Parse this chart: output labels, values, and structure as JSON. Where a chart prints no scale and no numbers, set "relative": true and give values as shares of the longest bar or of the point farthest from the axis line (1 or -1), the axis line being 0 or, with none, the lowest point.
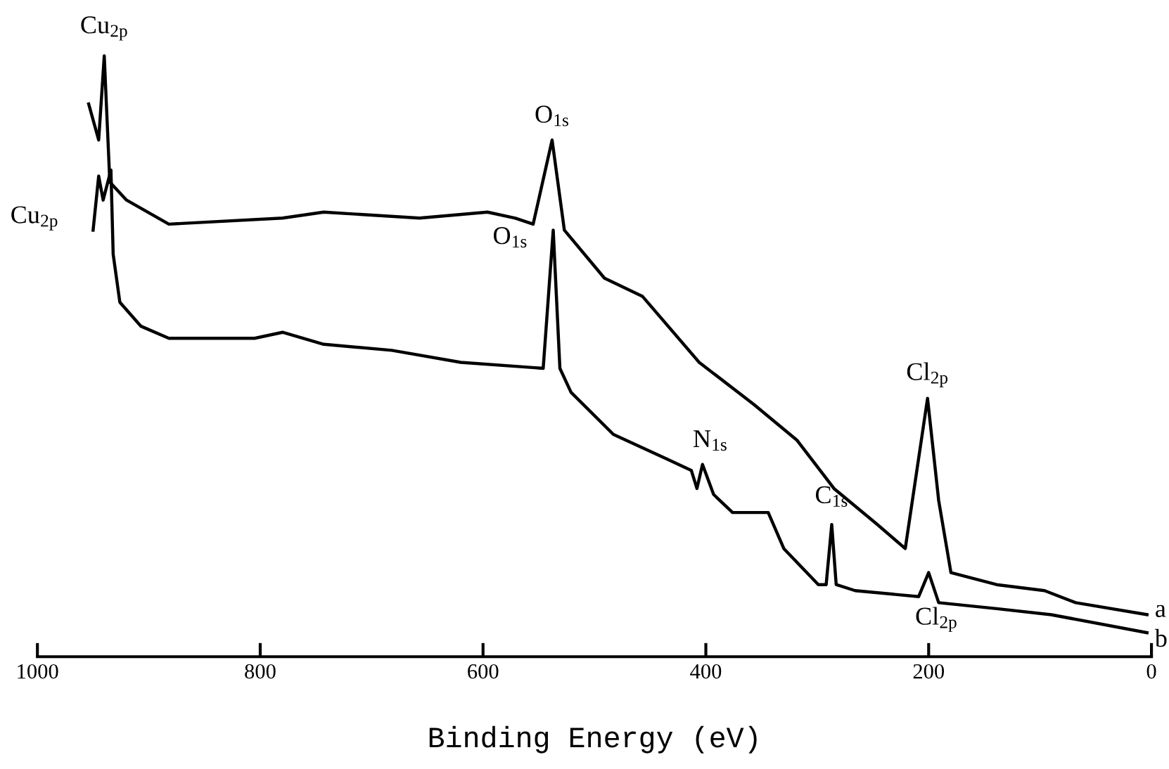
{
  "chart_data": {
    "type": "line",
    "relative": true,
    "xlabel": "Binding Energy (eV)",
    "xlim": [
      1000,
      0
    ],
    "xticks": [
      1000,
      800,
      600,
      400,
      200,
      0
    ],
    "tick_labels": "x",
    "grid": false,
    "legend": false,
    "marker": "none",
    "line_style": "solid",
    "series": [
      {
        "name": "a",
        "color": "#000000",
        "x": [
          954,
          945,
          940,
          935,
          920,
          882,
          780,
          743,
          657,
          596,
          571,
          555,
          538,
          527,
          491,
          457,
          406,
          357,
          318,
          285,
          246,
          221,
          201,
          191,
          180,
          139,
          96,
          68,
          4
        ],
        "values": [
          0.92,
          0.86,
          1.0,
          0.79,
          0.76,
          0.72,
          0.73,
          0.74,
          0.73,
          0.74,
          0.73,
          0.72,
          0.86,
          0.71,
          0.63,
          0.6,
          0.49,
          0.42,
          0.36,
          0.28,
          0.22,
          0.18,
          0.43,
          0.26,
          0.14,
          0.12,
          0.11,
          0.09,
          0.07
        ]
      },
      {
        "name": "b",
        "color": "#000000",
        "x": [
          950,
          945,
          941,
          934,
          932,
          926,
          907,
          882,
          805,
          780,
          743,
          682,
          620,
          546,
          537,
          531,
          521,
          483,
          436,
          413,
          408,
          403,
          393,
          376,
          344,
          330,
          299,
          292,
          287,
          283,
          266,
          209,
          200,
          191,
          139,
          90,
          4
        ],
        "values": [
          0.71,
          0.8,
          0.76,
          0.81,
          0.67,
          0.59,
          0.55,
          0.53,
          0.53,
          0.54,
          0.52,
          0.51,
          0.49,
          0.48,
          0.71,
          0.48,
          0.44,
          0.37,
          0.33,
          0.31,
          0.28,
          0.32,
          0.27,
          0.24,
          0.24,
          0.18,
          0.12,
          0.12,
          0.22,
          0.12,
          0.11,
          0.1,
          0.14,
          0.09,
          0.08,
          0.07,
          0.04
        ]
      }
    ],
    "annotations": [
      {
        "text": "Cu$_{2p}$",
        "x": 940,
        "y": 1.0
      },
      {
        "text": "Cu$_{2p}$",
        "x": 950,
        "y": 0.71
      },
      {
        "text": "O$_{1s}$",
        "x": 538,
        "y": 0.86
      },
      {
        "text": "O$_{1s}$",
        "x": 537,
        "y": 0.71
      },
      {
        "text": "N$_{1s}$",
        "x": 403,
        "y": 0.32
      },
      {
        "text": "C$_{1s}$",
        "x": 287,
        "y": 0.22
      },
      {
        "text": "Cl$_{2p}$",
        "x": 201,
        "y": 0.43
      },
      {
        "text": "Cl$_{2p}$",
        "x": 200,
        "y": 0.14
      }
    ]
  }
}
